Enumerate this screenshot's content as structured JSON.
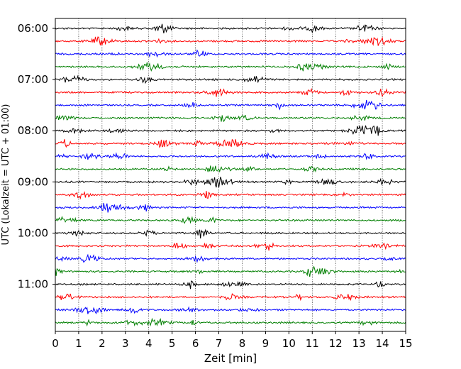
{
  "chart_data": {
    "type": "line",
    "title": "",
    "xlabel": "Zeit  [min]",
    "ylabel": "UTC (Lokalzeit = UTC + 01:00)",
    "xlim": [
      0,
      15
    ],
    "x_ticks": [
      "0",
      "1",
      "2",
      "3",
      "4",
      "5",
      "6",
      "7",
      "8",
      "9",
      "10",
      "11",
      "12",
      "13",
      "14",
      "15"
    ],
    "y_ticks": [
      "06:00",
      "07:00",
      "08:00",
      "09:00",
      "10:00",
      "11:00"
    ],
    "grid": "vertical dotted",
    "trace_interval_min": 15,
    "trace_start": "06:00",
    "trace_count": 24,
    "trace_colors": [
      "#000000",
      "#ff0000",
      "#0000ff",
      "#007f00"
    ]
  }
}
